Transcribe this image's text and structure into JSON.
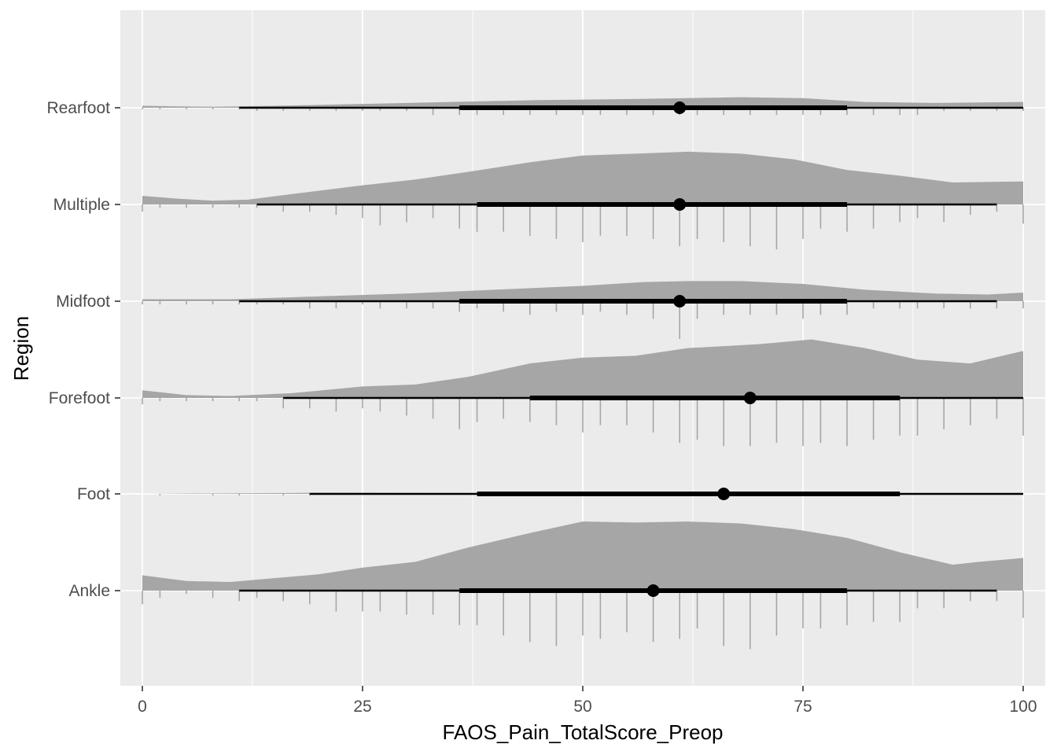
{
  "chart_data": {
    "type": "halfeye-dots",
    "xlabel": "FAOS_Pain_TotalScore_Preop",
    "ylabel": "Region",
    "xlim": [
      -2.5,
      102.5
    ],
    "x_ticks": [
      0,
      25,
      50,
      75,
      100
    ],
    "x_tick_labels": [
      "0",
      "25",
      "50",
      "75",
      "100"
    ],
    "grid": true,
    "colors": {
      "panel": "#ebebeb",
      "grid": "#ffffff",
      "density": "#a6a6a6",
      "dots": "#a6a6a6",
      "interval": "#000000"
    },
    "series": [
      {
        "name": "Ankle",
        "median": 58,
        "interval_66": [
          36,
          80
        ],
        "interval_95": [
          11,
          97
        ],
        "density": [
          [
            0,
            0.16
          ],
          [
            5,
            0.1
          ],
          [
            10,
            0.09
          ],
          [
            20,
            0.17
          ],
          [
            25,
            0.24
          ],
          [
            31,
            0.3
          ],
          [
            37,
            0.45
          ],
          [
            44,
            0.6
          ],
          [
            50,
            0.72
          ],
          [
            56,
            0.71
          ],
          [
            62,
            0.72
          ],
          [
            68,
            0.7
          ],
          [
            74,
            0.64
          ],
          [
            80,
            0.55
          ],
          [
            86,
            0.4
          ],
          [
            92,
            0.27
          ],
          [
            95,
            0.3
          ],
          [
            100,
            0.34
          ]
        ],
        "dots": [
          [
            0,
            0.17
          ],
          [
            2,
            0.09
          ],
          [
            5,
            0.04
          ],
          [
            8,
            0.09
          ],
          [
            11,
            0.13
          ],
          [
            13,
            0.09
          ],
          [
            16,
            0.13
          ],
          [
            19,
            0.17
          ],
          [
            22,
            0.26
          ],
          [
            25,
            0.26
          ],
          [
            27,
            0.26
          ],
          [
            30,
            0.3
          ],
          [
            33,
            0.3
          ],
          [
            36,
            0.43
          ],
          [
            38,
            0.43
          ],
          [
            41,
            0.56
          ],
          [
            44,
            0.64
          ],
          [
            47,
            0.69
          ],
          [
            50,
            0.56
          ],
          [
            52,
            0.6
          ],
          [
            55,
            0.52
          ],
          [
            58,
            0.64
          ],
          [
            61,
            0.6
          ],
          [
            63,
            0.47
          ],
          [
            66,
            0.69
          ],
          [
            69,
            0.73
          ],
          [
            72,
            0.56
          ],
          [
            75,
            0.47
          ],
          [
            77,
            0.47
          ],
          [
            80,
            0.43
          ],
          [
            83,
            0.39
          ],
          [
            86,
            0.39
          ],
          [
            88,
            0.22
          ],
          [
            91,
            0.22
          ],
          [
            94,
            0.13
          ],
          [
            97,
            0.13
          ],
          [
            100,
            0.34
          ]
        ]
      },
      {
        "name": "Foot",
        "median": 66,
        "interval_66": [
          38,
          86
        ],
        "interval_95": [
          19,
          100
        ],
        "density": [
          [
            0,
            0
          ],
          [
            5,
            0.004
          ],
          [
            10,
            0.006
          ],
          [
            15,
            0.008
          ],
          [
            20,
            0.012
          ],
          [
            30,
            0.01
          ],
          [
            40,
            0.008
          ],
          [
            50,
            0.006
          ],
          [
            60,
            0.006
          ],
          [
            70,
            0.006
          ],
          [
            80,
            0.005
          ],
          [
            90,
            0.004
          ],
          [
            100,
            0.004
          ]
        ],
        "dots": [
          [
            2,
            0.02
          ],
          [
            8,
            0.02
          ],
          [
            11,
            0.02
          ],
          [
            16,
            0.02
          ],
          [
            19,
            0.02
          ]
        ]
      },
      {
        "name": "Forefoot",
        "median": 69,
        "interval_66": [
          44,
          86
        ],
        "interval_95": [
          16,
          100
        ],
        "density": [
          [
            0,
            0.08
          ],
          [
            5,
            0.03
          ],
          [
            10,
            0.02
          ],
          [
            17,
            0.05
          ],
          [
            25,
            0.12
          ],
          [
            31,
            0.14
          ],
          [
            37,
            0.22
          ],
          [
            44,
            0.36
          ],
          [
            50,
            0.42
          ],
          [
            56,
            0.44
          ],
          [
            62,
            0.52
          ],
          [
            70,
            0.56
          ],
          [
            76,
            0.61
          ],
          [
            82,
            0.52
          ],
          [
            88,
            0.4
          ],
          [
            94,
            0.36
          ],
          [
            100,
            0.49
          ]
        ],
        "dots": [
          [
            0,
            0.08
          ],
          [
            2,
            0.04
          ],
          [
            5,
            0.04
          ],
          [
            8,
            0.04
          ],
          [
            11,
            0.04
          ],
          [
            13,
            0.04
          ],
          [
            16,
            0.13
          ],
          [
            19,
            0.13
          ],
          [
            22,
            0.17
          ],
          [
            25,
            0.13
          ],
          [
            27,
            0.17
          ],
          [
            30,
            0.22
          ],
          [
            33,
            0.26
          ],
          [
            36,
            0.39
          ],
          [
            38,
            0.3
          ],
          [
            41,
            0.26
          ],
          [
            44,
            0.3
          ],
          [
            47,
            0.34
          ],
          [
            50,
            0.43
          ],
          [
            52,
            0.34
          ],
          [
            55,
            0.34
          ],
          [
            58,
            0.43
          ],
          [
            61,
            0.56
          ],
          [
            63,
            0.52
          ],
          [
            66,
            0.6
          ],
          [
            69,
            0.6
          ],
          [
            72,
            0.56
          ],
          [
            75,
            0.6
          ],
          [
            77,
            0.56
          ],
          [
            80,
            0.6
          ],
          [
            83,
            0.52
          ],
          [
            86,
            0.47
          ],
          [
            88,
            0.47
          ],
          [
            91,
            0.39
          ],
          [
            94,
            0.34
          ],
          [
            97,
            0.26
          ],
          [
            100,
            0.47
          ]
        ]
      },
      {
        "name": "Midfoot",
        "median": 61,
        "interval_66": [
          36,
          80
        ],
        "interval_95": [
          11,
          97
        ],
        "density": [
          [
            0,
            0.02
          ],
          [
            10,
            0.02
          ],
          [
            20,
            0.05
          ],
          [
            30,
            0.08
          ],
          [
            40,
            0.12
          ],
          [
            50,
            0.16
          ],
          [
            57,
            0.2
          ],
          [
            62,
            0.21
          ],
          [
            68,
            0.21
          ],
          [
            75,
            0.18
          ],
          [
            82,
            0.12
          ],
          [
            90,
            0.08
          ],
          [
            96,
            0.07
          ],
          [
            100,
            0.09
          ]
        ],
        "dots": [
          [
            0,
            0.04
          ],
          [
            2,
            0.04
          ],
          [
            5,
            0.04
          ],
          [
            8,
            0.04
          ],
          [
            11,
            0.04
          ],
          [
            13,
            0.04
          ],
          [
            16,
            0.04
          ],
          [
            19,
            0.09
          ],
          [
            22,
            0.09
          ],
          [
            25,
            0.04
          ],
          [
            27,
            0.09
          ],
          [
            30,
            0.09
          ],
          [
            33,
            0.09
          ],
          [
            36,
            0.13
          ],
          [
            38,
            0.09
          ],
          [
            41,
            0.13
          ],
          [
            44,
            0.17
          ],
          [
            47,
            0.13
          ],
          [
            50,
            0.17
          ],
          [
            52,
            0.13
          ],
          [
            55,
            0.17
          ],
          [
            58,
            0.22
          ],
          [
            61,
            0.47
          ],
          [
            63,
            0.22
          ],
          [
            66,
            0.17
          ],
          [
            69,
            0.17
          ],
          [
            72,
            0.17
          ],
          [
            75,
            0.22
          ],
          [
            77,
            0.17
          ],
          [
            80,
            0.17
          ],
          [
            83,
            0.09
          ],
          [
            86,
            0.09
          ],
          [
            88,
            0.09
          ],
          [
            91,
            0.09
          ],
          [
            94,
            0.09
          ],
          [
            97,
            0.09
          ],
          [
            100,
            0.09
          ]
        ]
      },
      {
        "name": "Multiple",
        "median": 61,
        "interval_66": [
          38,
          80
        ],
        "interval_95": [
          13,
          97
        ],
        "density": [
          [
            0,
            0.09
          ],
          [
            4,
            0.06
          ],
          [
            8,
            0.04
          ],
          [
            12,
            0.05
          ],
          [
            18,
            0.12
          ],
          [
            25,
            0.2
          ],
          [
            31,
            0.26
          ],
          [
            37,
            0.34
          ],
          [
            44,
            0.44
          ],
          [
            50,
            0.51
          ],
          [
            56,
            0.53
          ],
          [
            62,
            0.55
          ],
          [
            68,
            0.53
          ],
          [
            74,
            0.47
          ],
          [
            80,
            0.36
          ],
          [
            86,
            0.3
          ],
          [
            92,
            0.23
          ],
          [
            100,
            0.24
          ]
        ],
        "dots": [
          [
            0,
            0.09
          ],
          [
            2,
            0.04
          ],
          [
            5,
            0.04
          ],
          [
            8,
            0.04
          ],
          [
            11,
            0.04
          ],
          [
            13,
            0.04
          ],
          [
            16,
            0.09
          ],
          [
            19,
            0.09
          ],
          [
            22,
            0.13
          ],
          [
            25,
            0.17
          ],
          [
            27,
            0.26
          ],
          [
            30,
            0.22
          ],
          [
            33,
            0.17
          ],
          [
            36,
            0.3
          ],
          [
            38,
            0.34
          ],
          [
            41,
            0.34
          ],
          [
            44,
            0.39
          ],
          [
            47,
            0.43
          ],
          [
            50,
            0.47
          ],
          [
            52,
            0.39
          ],
          [
            55,
            0.39
          ],
          [
            58,
            0.43
          ],
          [
            61,
            0.52
          ],
          [
            63,
            0.43
          ],
          [
            66,
            0.47
          ],
          [
            69,
            0.52
          ],
          [
            72,
            0.56
          ],
          [
            75,
            0.43
          ],
          [
            77,
            0.3
          ],
          [
            80,
            0.34
          ],
          [
            83,
            0.3
          ],
          [
            86,
            0.22
          ],
          [
            88,
            0.17
          ],
          [
            91,
            0.22
          ],
          [
            94,
            0.13
          ],
          [
            97,
            0.09
          ],
          [
            100,
            0.24
          ]
        ]
      },
      {
        "name": "Rearfoot",
        "median": 61,
        "interval_66": [
          36,
          80
        ],
        "interval_95": [
          11,
          100
        ],
        "density": [
          [
            0,
            0.02
          ],
          [
            8,
            0.01
          ],
          [
            15,
            0.02
          ],
          [
            25,
            0.04
          ],
          [
            35,
            0.06
          ],
          [
            45,
            0.08
          ],
          [
            55,
            0.09
          ],
          [
            62,
            0.1
          ],
          [
            68,
            0.11
          ],
          [
            75,
            0.1
          ],
          [
            82,
            0.06
          ],
          [
            90,
            0.05
          ],
          [
            100,
            0.06
          ]
        ],
        "dots": [
          [
            0,
            0.02
          ],
          [
            2,
            0.02
          ],
          [
            5,
            0.02
          ],
          [
            8,
            0.02
          ],
          [
            11,
            0.02
          ],
          [
            13,
            0.04
          ],
          [
            16,
            0.04
          ],
          [
            19,
            0.04
          ],
          [
            22,
            0.04
          ],
          [
            25,
            0.04
          ],
          [
            27,
            0.04
          ],
          [
            30,
            0.04
          ],
          [
            33,
            0.09
          ],
          [
            36,
            0.09
          ],
          [
            38,
            0.09
          ],
          [
            41,
            0.09
          ],
          [
            44,
            0.09
          ],
          [
            47,
            0.09
          ],
          [
            50,
            0.09
          ],
          [
            52,
            0.09
          ],
          [
            55,
            0.09
          ],
          [
            58,
            0.09
          ],
          [
            61,
            0.09
          ],
          [
            63,
            0.09
          ],
          [
            66,
            0.09
          ],
          [
            69,
            0.09
          ],
          [
            72,
            0.09
          ],
          [
            75,
            0.09
          ],
          [
            77,
            0.09
          ],
          [
            80,
            0.09
          ],
          [
            83,
            0.09
          ],
          [
            86,
            0.09
          ],
          [
            88,
            0.09
          ],
          [
            91,
            0.04
          ],
          [
            94,
            0.04
          ],
          [
            97,
            0.04
          ],
          [
            100,
            0.04
          ]
        ]
      }
    ]
  }
}
